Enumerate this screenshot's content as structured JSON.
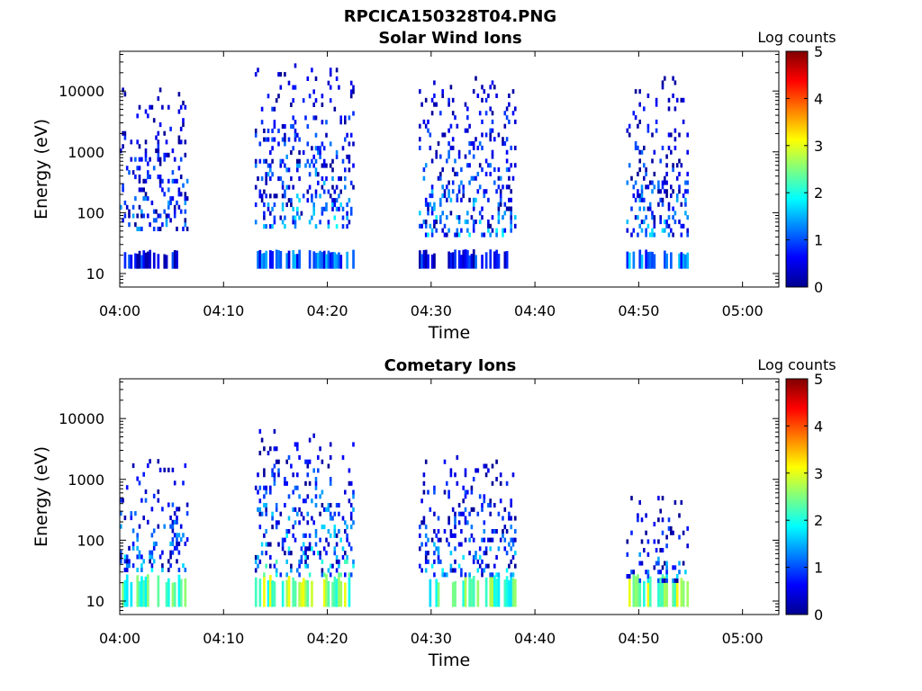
{
  "figure": {
    "title": "RPCICA150328T04.PNG"
  },
  "chart_data": [
    {
      "type": "heatmap",
      "title": "Solar Wind Ions",
      "xlabel": "Time",
      "ylabel": "Energy (eV)",
      "x_tick_labels": [
        "04:00",
        "04:10",
        "04:20",
        "04:30",
        "04:40",
        "04:50",
        "05:00"
      ],
      "x_ticks_min": [
        0,
        10,
        20,
        30,
        40,
        50,
        60
      ],
      "xlim_min": [
        0,
        63.5
      ],
      "y_scale": "log",
      "y_tick_labels": [
        "10",
        "100",
        "1000",
        "10000"
      ],
      "y_ticks": [
        10,
        100,
        1000,
        10000
      ],
      "ylim": [
        6,
        45000
      ],
      "colorbar": {
        "label": "Log counts",
        "ticks": [
          "0",
          "1",
          "2",
          "3",
          "4",
          "5"
        ],
        "range": [
          0,
          5
        ],
        "colormap": "jet"
      },
      "segments": [
        {
          "t_start": 0.0,
          "t_end": 6.5,
          "e_min": 50,
          "e_max": 10000,
          "low_e_band": [
            12,
            25
          ],
          "low_intensity": 0.6,
          "peak_intensity": 1.7
        },
        {
          "t_start": 13.0,
          "t_end": 22.5,
          "e_min": 55,
          "e_max": 25000,
          "low_e_band": [
            12,
            25
          ],
          "low_intensity": 1.0,
          "peak_intensity": 2.0
        },
        {
          "t_start": 28.8,
          "t_end": 38.2,
          "e_min": 40,
          "e_max": 15000,
          "low_e_band": [
            12,
            25
          ],
          "low_intensity": 0.6,
          "peak_intensity": 2.0
        },
        {
          "t_start": 48.8,
          "t_end": 54.8,
          "e_min": 40,
          "e_max": 15000,
          "low_e_band": [
            12,
            25
          ],
          "low_intensity": 1.2,
          "peak_intensity": 1.8
        }
      ]
    },
    {
      "type": "heatmap",
      "title": "Cometary Ions",
      "xlabel": "Time",
      "ylabel": "Energy (eV)",
      "x_tick_labels": [
        "04:00",
        "04:10",
        "04:20",
        "04:30",
        "04:40",
        "04:50",
        "05:00"
      ],
      "x_ticks_min": [
        0,
        10,
        20,
        30,
        40,
        50,
        60
      ],
      "xlim_min": [
        0,
        63.5
      ],
      "y_scale": "log",
      "y_tick_labels": [
        "10",
        "100",
        "1000",
        "10000"
      ],
      "y_ticks": [
        10,
        100,
        1000,
        10000
      ],
      "ylim": [
        6,
        45000
      ],
      "colorbar": {
        "label": "Log counts",
        "ticks": [
          "0",
          "1",
          "2",
          "3",
          "4",
          "5"
        ],
        "range": [
          0,
          5
        ],
        "colormap": "jet"
      },
      "segments": [
        {
          "t_start": 0.0,
          "t_end": 6.5,
          "e_min": 30,
          "e_max": 2000,
          "low_e_band": [
            8,
            28
          ],
          "low_intensity": 2.0,
          "peak_intensity": 2.0
        },
        {
          "t_start": 13.0,
          "t_end": 22.5,
          "e_min": 25,
          "e_max": 6000,
          "low_e_band": [
            8,
            28
          ],
          "low_intensity": 2.5,
          "peak_intensity": 2.4
        },
        {
          "t_start": 28.8,
          "t_end": 38.2,
          "e_min": 25,
          "e_max": 2500,
          "low_e_band": [
            8,
            28
          ],
          "low_intensity": 2.3,
          "peak_intensity": 2.0
        },
        {
          "t_start": 48.8,
          "t_end": 54.8,
          "e_min": 20,
          "e_max": 500,
          "low_e_band": [
            8,
            28
          ],
          "low_intensity": 2.6,
          "peak_intensity": 1.8
        }
      ]
    }
  ]
}
